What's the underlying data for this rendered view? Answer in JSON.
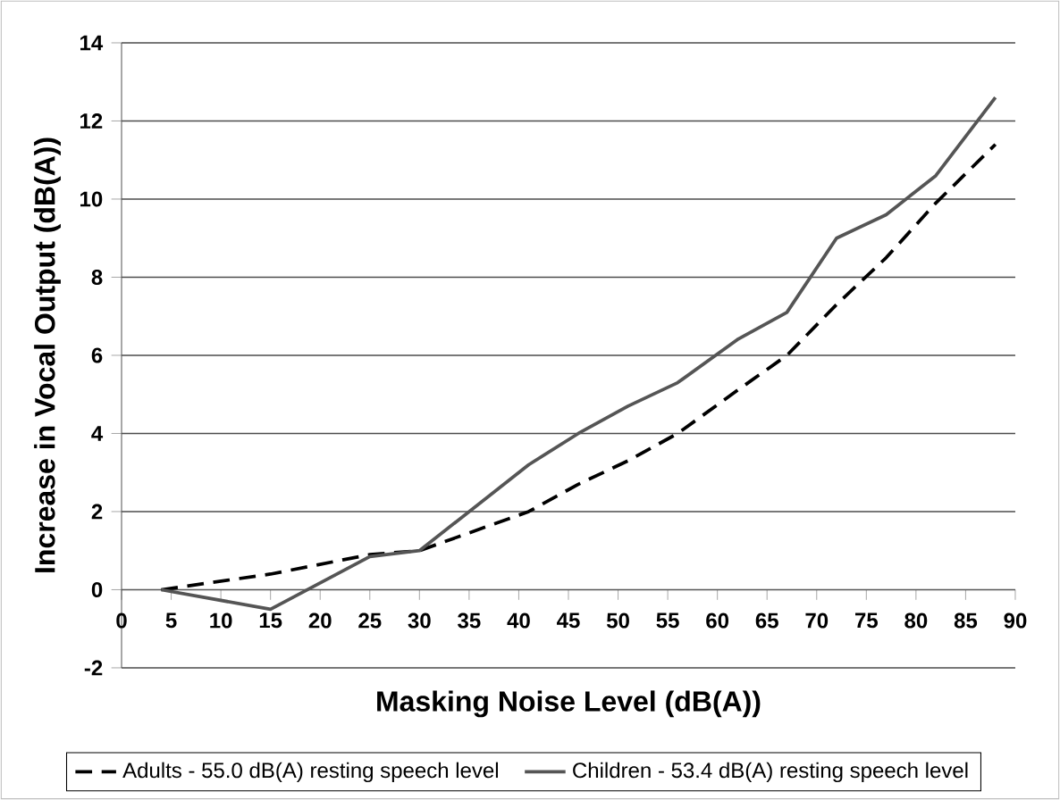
{
  "chart_data": {
    "type": "line",
    "xlabel": "Masking Noise Level (dB(A))",
    "ylabel": "Increase in Vocal Output (dB(A))",
    "x": [
      4,
      15,
      25,
      30,
      41,
      46,
      51,
      56,
      62,
      67,
      72,
      77,
      82,
      88
    ],
    "series": [
      {
        "name": "Adults - 55.0 dB(A) resting speech level",
        "color": "#000000",
        "line_style": "dashed",
        "values": [
          0,
          0.4,
          0.9,
          1.0,
          2.0,
          2.7,
          3.3,
          4.0,
          5.1,
          6.0,
          7.3,
          8.5,
          9.9,
          11.4
        ]
      },
      {
        "name": "Children - 53.4 dB(A) resting speech level",
        "color": "#555555",
        "line_style": "solid",
        "values": [
          0,
          -0.5,
          0.85,
          1.0,
          3.2,
          4.0,
          4.7,
          5.3,
          6.4,
          7.1,
          9.0,
          9.6,
          10.6,
          12.6
        ]
      }
    ],
    "xlim": [
      0,
      90
    ],
    "xticks": [
      0,
      5,
      10,
      15,
      20,
      25,
      30,
      35,
      40,
      45,
      50,
      55,
      60,
      65,
      70,
      75,
      80,
      85,
      90
    ],
    "ylim": [
      -2,
      14
    ],
    "yticks": [
      -2,
      0,
      2,
      4,
      6,
      8,
      10,
      12,
      14
    ],
    "grid": "y",
    "legend": "bottom"
  }
}
